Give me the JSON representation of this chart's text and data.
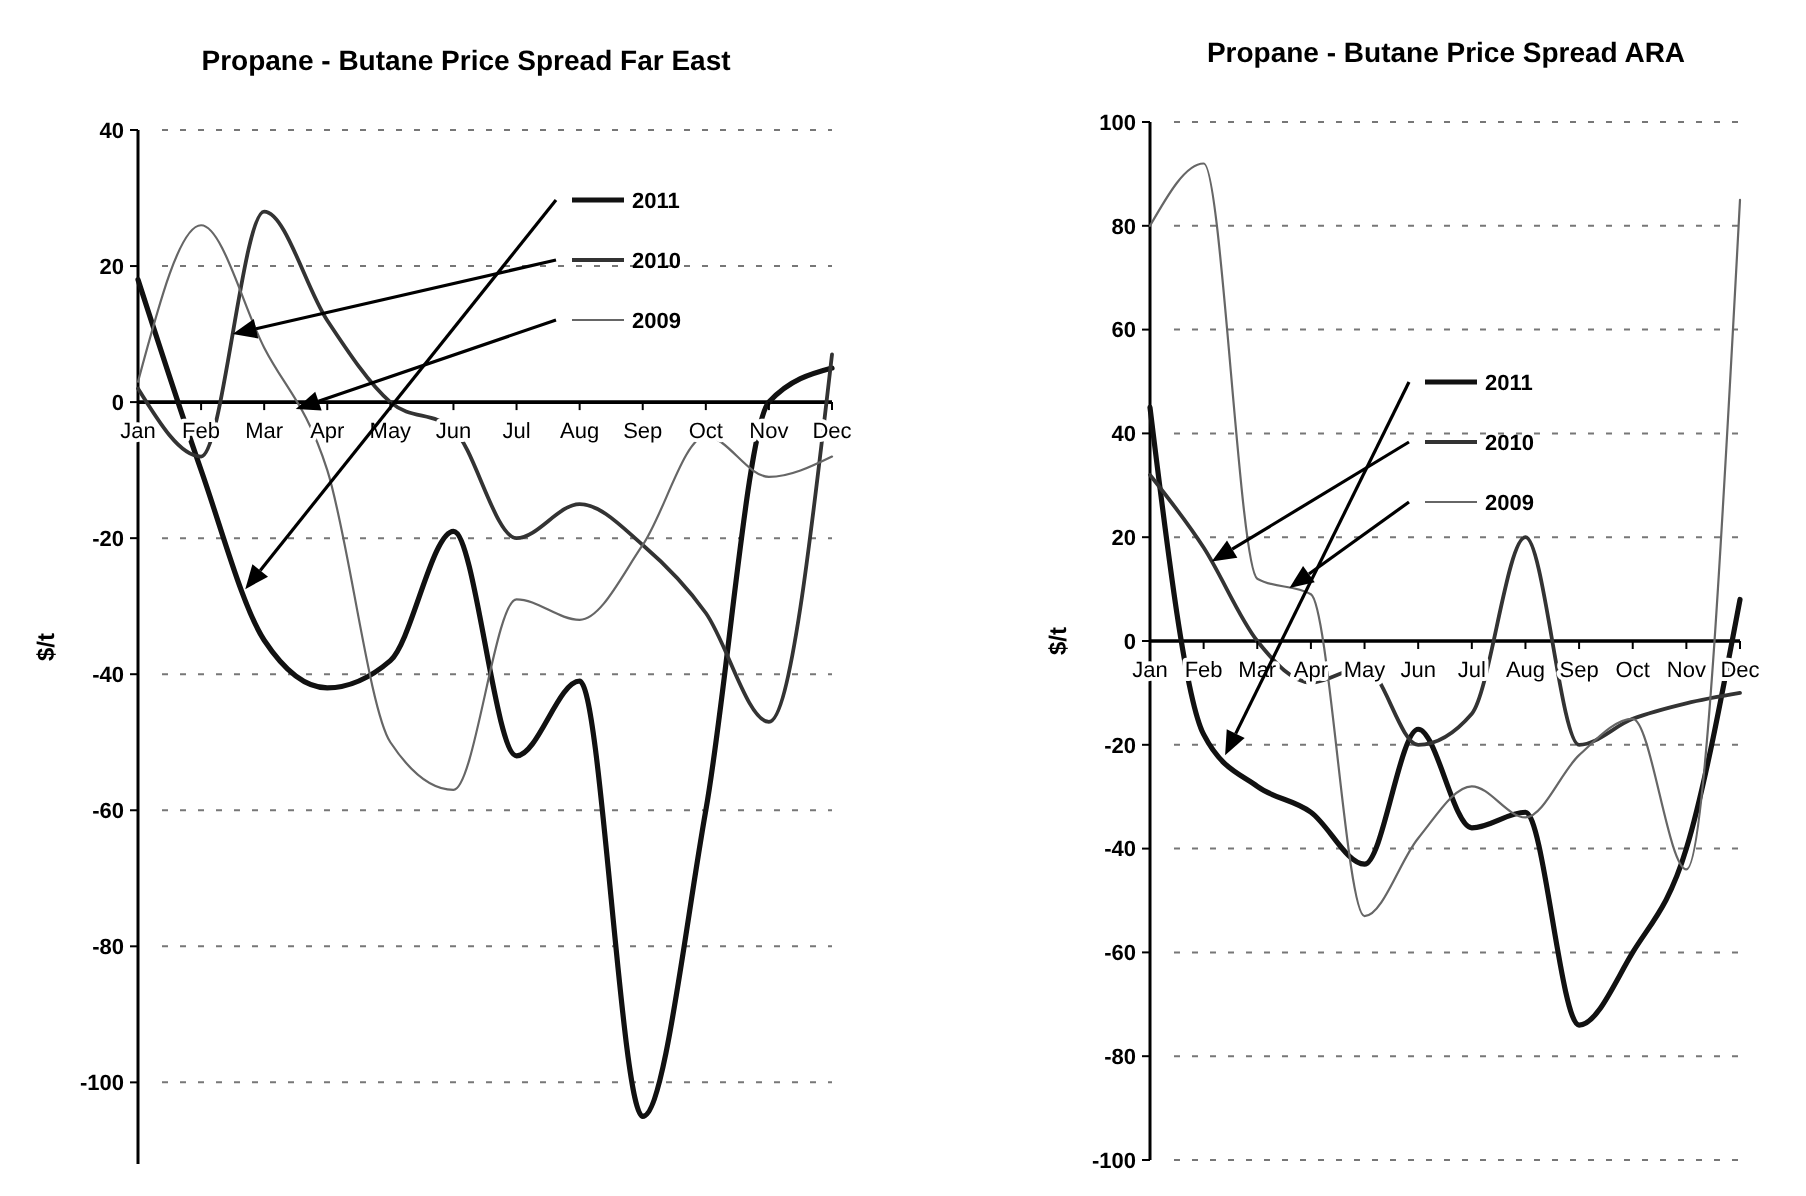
{
  "chart_data": [
    {
      "type": "line",
      "title": "Propane - Butane Price Spread Far East",
      "ylabel": "$/t",
      "categories": [
        "Jan",
        "Feb",
        "Mar",
        "Apr",
        "May",
        "Jun",
        "Jul",
        "Aug",
        "Sep",
        "Oct",
        "Nov",
        "Dec"
      ],
      "ylim": [
        -112,
        40
      ],
      "yticks": [
        40,
        20,
        0,
        -20,
        -40,
        -60,
        -80,
        -100
      ],
      "grid": "y",
      "legend": "top right",
      "series": [
        {
          "name": "2011",
          "color": "#111111",
          "values": [
            18,
            -10,
            -35,
            -42,
            -38,
            -19,
            -52,
            -41,
            -105,
            -60,
            0,
            5
          ]
        },
        {
          "name": "2010",
          "color": "#333333",
          "values": [
            2,
            -8,
            28,
            12,
            0,
            -4,
            -20,
            -15,
            -21,
            -31,
            -47,
            7
          ]
        },
        {
          "name": "2009",
          "color": "#666666",
          "values": [
            3,
            26,
            8,
            -10,
            -50,
            -57,
            -29,
            -32,
            -21,
            -5,
            -11,
            -8
          ]
        }
      ]
    },
    {
      "type": "line",
      "title": "Propane - Butane Price Spread ARA",
      "ylabel": "$/t",
      "categories": [
        "Jan",
        "Feb",
        "Mar",
        "Apr",
        "May",
        "Jun",
        "Jul",
        "Aug",
        "Sep",
        "Oct",
        "Nov",
        "Dec"
      ],
      "ylim": [
        -100,
        100
      ],
      "yticks": [
        100,
        80,
        60,
        40,
        20,
        0,
        -20,
        -40,
        -60,
        -80,
        -100
      ],
      "grid": "y",
      "legend": "top",
      "series": [
        {
          "name": "2011",
          "color": "#111111",
          "values": [
            45,
            -18,
            -28,
            -33,
            -43,
            -17,
            -36,
            -33,
            -74,
            -60,
            -40,
            8
          ]
        },
        {
          "name": "2010",
          "color": "#333333",
          "values": [
            32,
            18,
            0,
            -8,
            -5,
            -20,
            -14,
            20,
            -20,
            -15,
            -12,
            -10
          ]
        },
        {
          "name": "2009",
          "color": "#666666",
          "values": [
            80,
            92,
            12,
            9,
            -53,
            -38,
            -28,
            -34,
            -22,
            -15,
            -44,
            85
          ]
        }
      ]
    }
  ]
}
